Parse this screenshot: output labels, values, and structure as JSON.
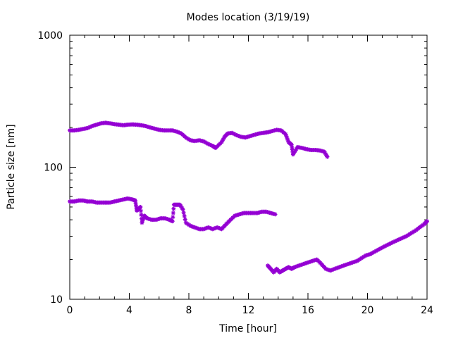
{
  "chart_data": {
    "type": "scatter",
    "title": "Modes location (3/19/19)",
    "xlabel": "Time [hour]",
    "ylabel": "Particle size [nm]",
    "xlim": [
      0,
      24
    ],
    "ylim": [
      10,
      1000
    ],
    "y_scale": "log",
    "grid": false,
    "legend": "none",
    "marker_color": "#9400d3",
    "x_ticks": [
      0,
      4,
      8,
      12,
      16,
      20,
      24
    ],
    "x_tick_labels": [
      "0",
      "4",
      "8",
      "12",
      "16",
      "20",
      "24"
    ],
    "y_ticks": [
      10,
      100,
      1000
    ],
    "y_tick_labels": [
      "10",
      "100",
      "1000"
    ],
    "series": [
      {
        "x": [
          0.0,
          0.3,
          0.6,
          0.9,
          1.2,
          1.5,
          1.8,
          2.1,
          2.4,
          2.7,
          3.0,
          3.3,
          3.6,
          3.9,
          4.2,
          4.5,
          4.8,
          5.1,
          5.4,
          5.7,
          6.0,
          6.3,
          6.6,
          6.9,
          7.2,
          7.5,
          7.8,
          8.1,
          8.4,
          8.7,
          9.0,
          9.3,
          9.6,
          9.8,
          10.2,
          10.4,
          10.6,
          10.9,
          11.2,
          11.5,
          11.8,
          12.1,
          12.4,
          12.7,
          13.0,
          13.3,
          13.6,
          13.9,
          14.2,
          14.5,
          14.7,
          14.9,
          15.0,
          15.3,
          15.6,
          15.9,
          16.2,
          16.5,
          16.8,
          17.1,
          17.3
        ],
        "y": [
          190,
          190,
          192,
          195,
          198,
          205,
          210,
          215,
          217,
          215,
          212,
          210,
          208,
          210,
          211,
          210,
          208,
          205,
          200,
          196,
          192,
          190,
          190,
          190,
          186,
          180,
          168,
          160,
          158,
          160,
          157,
          150,
          145,
          140,
          155,
          170,
          180,
          182,
          175,
          170,
          168,
          172,
          176,
          180,
          182,
          184,
          188,
          192,
          190,
          178,
          155,
          148,
          125,
          142,
          140,
          137,
          135,
          135,
          134,
          131,
          120
        ]
      },
      {
        "x": [
          0.0,
          0.3,
          0.6,
          0.9,
          1.2,
          1.5,
          1.8,
          2.1,
          2.4,
          2.7,
          3.0,
          3.3,
          3.6,
          3.9,
          4.2,
          4.4,
          4.5,
          4.6,
          4.75,
          4.85,
          5.0,
          5.2,
          5.5,
          5.8,
          6.1,
          6.4,
          6.7,
          6.9,
          7.0,
          7.2,
          7.4,
          7.6,
          7.8,
          8.1,
          8.4,
          8.7,
          9.0,
          9.3,
          9.6,
          9.9,
          10.2,
          10.5,
          10.8,
          11.1,
          11.4,
          11.7,
          12.0,
          12.3,
          12.6,
          12.9,
          13.2,
          13.5,
          13.8
        ],
        "y": [
          55,
          55,
          56,
          56,
          55,
          55,
          54,
          54,
          54,
          54,
          55,
          56,
          57,
          58,
          57,
          56,
          47,
          48,
          50,
          38,
          43,
          41,
          40,
          40,
          41,
          41,
          40,
          39,
          52,
          52,
          52,
          48,
          38,
          36,
          35,
          34,
          34,
          35,
          34,
          35,
          34,
          37,
          40,
          43,
          44,
          45,
          45,
          45,
          45,
          46,
          46,
          45,
          44
        ]
      },
      {
        "x": [
          13.3,
          13.5,
          13.7,
          13.9,
          14.1,
          14.3,
          14.5,
          14.7,
          14.9,
          15.1,
          15.4,
          15.7,
          16.0,
          16.3,
          16.6,
          16.9,
          17.2,
          17.5,
          17.8,
          18.1,
          18.4,
          18.7,
          19.0,
          19.3,
          19.6,
          19.9,
          20.2,
          20.5,
          20.8,
          21.1,
          21.4,
          21.7,
          22.0,
          22.3,
          22.6,
          22.9,
          23.2,
          23.5,
          23.8,
          24.0
        ],
        "y": [
          18,
          17,
          16,
          17,
          16,
          16.5,
          17,
          17.5,
          17,
          17.5,
          18,
          18.5,
          19,
          19.5,
          20,
          18.5,
          17,
          16.5,
          17,
          17.5,
          18,
          18.5,
          19,
          19.5,
          20.5,
          21.5,
          22,
          23,
          24,
          25,
          26,
          27,
          28,
          29,
          30,
          31.5,
          33,
          35,
          37,
          39
        ]
      }
    ]
  }
}
